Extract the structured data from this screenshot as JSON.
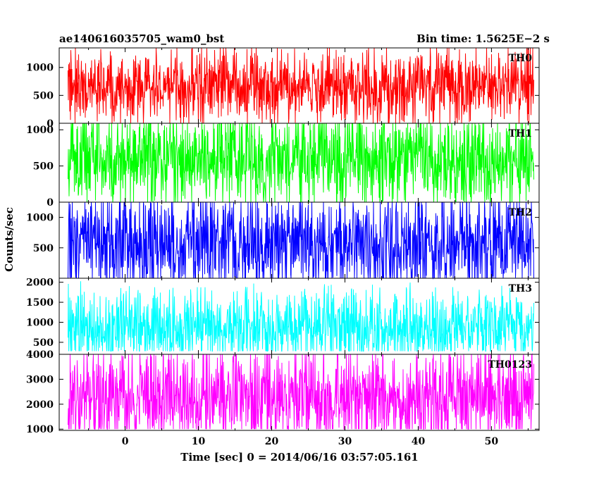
{
  "header": {
    "left": "ae140616035705_wam0_bst",
    "right": "Bin time: 1.5625E−2 s"
  },
  "xlabel": "Time [sec] 0 = 2014/06/16 03:57:05.161",
  "ylabel": "Counts/sec",
  "chart_data": {
    "type": "line",
    "title": "ae140616035705_wam0_bst",
    "subtitle": "Bin time: 1.5625E−2 s",
    "xlabel": "Time [sec] 0 = 2014/06/16 03:57:05.161",
    "ylabel": "Counts/sec",
    "xlim": [
      -9,
      56.5
    ],
    "x_data_range": [
      -7.8,
      55.8
    ],
    "x_ticks": [
      0,
      10,
      20,
      30,
      40,
      50
    ],
    "x_tick_labels": [
      "0",
      "10",
      "20",
      "30",
      "40",
      "50"
    ],
    "bin_time_s": 0.015625,
    "grid": false,
    "panels": [
      {
        "name": "TH0",
        "color": "#ff0000",
        "ylim": [
          0,
          1350
        ],
        "y_ticks": [
          0,
          500,
          1000
        ],
        "y_tick_labels": [
          "0",
          "500",
          "1000"
        ],
        "mean": 650,
        "min": 0,
        "max": 1350,
        "typical_low": 170,
        "typical_high": 1050
      },
      {
        "name": "TH1",
        "color": "#00ff00",
        "ylim": [
          0,
          1090
        ],
        "y_ticks": [
          0,
          500,
          1000
        ],
        "y_tick_labels": [
          "0",
          "500",
          "1000"
        ],
        "mean": 600,
        "min": 0,
        "max": 1090,
        "typical_low": 80,
        "typical_high": 960
      },
      {
        "name": "TH2",
        "color": "#0000ff",
        "ylim": [
          0,
          1250
        ],
        "y_ticks": [
          500,
          1000
        ],
        "y_tick_labels": [
          "500",
          "1000"
        ],
        "mean": 580,
        "min": 0,
        "max": 1250,
        "typical_low": 50,
        "typical_high": 1150
      },
      {
        "name": "TH3",
        "color": "#00ffff",
        "ylim": [
          200,
          2100
        ],
        "y_ticks": [
          500,
          1000,
          1500,
          2000
        ],
        "y_tick_labels": [
          "500",
          "1000",
          "1500",
          "2000"
        ],
        "mean": 850,
        "min": 280,
        "max": 2100,
        "typical_low": 400,
        "typical_high": 1650
      },
      {
        "name": "TH0123",
        "color": "#ff00ff",
        "ylim": [
          950,
          4000
        ],
        "y_ticks": [
          1000,
          2000,
          3000,
          4000
        ],
        "y_tick_labels": [
          "1000",
          "2000",
          "3000",
          "4000"
        ],
        "mean": 2300,
        "min": 1000,
        "max": 4000,
        "typical_low": 1150,
        "typical_high": 3800
      }
    ]
  }
}
